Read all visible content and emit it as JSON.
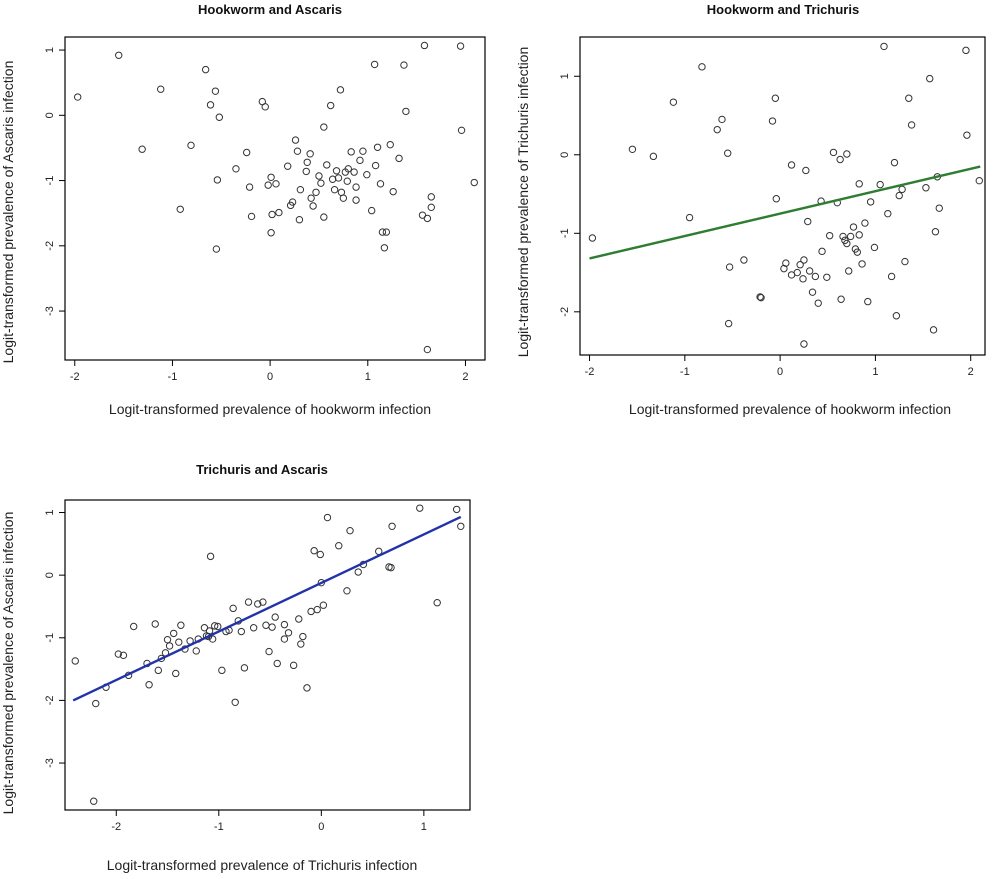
{
  "chart_data": [
    {
      "type": "scatter",
      "title": "Hookworm and Ascaris",
      "xlabel": "Logit-transformed prevalence of hookworm infection",
      "ylabel": "Logit-transformed prevalence of Ascaris infection",
      "xlim": [
        -2.1,
        2.2
      ],
      "ylim": [
        -3.75,
        1.2
      ],
      "xticks": [
        -2,
        -1,
        0,
        1,
        2
      ],
      "yticks": [
        -3,
        -2,
        -1,
        0,
        1
      ],
      "trend_line": null,
      "points": [
        [
          -1.97,
          0.28
        ],
        [
          -1.55,
          0.92
        ],
        [
          -1.12,
          0.4
        ],
        [
          -1.31,
          -0.52
        ],
        [
          -0.81,
          -0.46
        ],
        [
          -0.92,
          -1.44
        ],
        [
          -0.66,
          0.7
        ],
        [
          -0.61,
          0.16
        ],
        [
          -0.56,
          0.37
        ],
        [
          -0.54,
          -0.99
        ],
        [
          -0.55,
          -2.05
        ],
        [
          -0.35,
          -0.82
        ],
        [
          -0.24,
          -0.57
        ],
        [
          -0.21,
          -1.1
        ],
        [
          -0.19,
          -1.55
        ],
        [
          -0.08,
          0.21
        ],
        [
          -0.05,
          0.13
        ],
        [
          -0.02,
          -1.07
        ],
        [
          0.01,
          -0.95
        ],
        [
          0.02,
          -1.52
        ],
        [
          0.01,
          -1.8
        ],
        [
          0.06,
          -1.05
        ],
        [
          0.09,
          -1.49
        ],
        [
          0.18,
          -0.78
        ],
        [
          0.21,
          -1.38
        ],
        [
          0.23,
          -1.33
        ],
        [
          0.26,
          -0.38
        ],
        [
          0.28,
          -0.55
        ],
        [
          0.3,
          -1.6
        ],
        [
          0.31,
          -1.14
        ],
        [
          0.37,
          -0.86
        ],
        [
          0.38,
          -0.72
        ],
        [
          0.41,
          -0.59
        ],
        [
          0.42,
          -1.27
        ],
        [
          0.44,
          -1.39
        ],
        [
          0.47,
          -1.18
        ],
        [
          0.5,
          -0.93
        ],
        [
          0.52,
          -1.04
        ],
        [
          0.55,
          -0.18
        ],
        [
          0.55,
          -1.56
        ],
        [
          0.58,
          -0.76
        ],
        [
          0.62,
          0.15
        ],
        [
          0.64,
          -0.98
        ],
        [
          0.66,
          -1.14
        ],
        [
          0.68,
          -0.85
        ],
        [
          0.7,
          -0.96
        ],
        [
          0.73,
          -1.18
        ],
        [
          0.75,
          -1.27
        ],
        [
          0.77,
          -0.87
        ],
        [
          0.79,
          -1.01
        ],
        [
          0.8,
          -0.82
        ],
        [
          0.83,
          -0.56
        ],
        [
          0.86,
          -0.87
        ],
        [
          0.88,
          -1.1
        ],
        [
          0.88,
          -1.3
        ],
        [
          0.92,
          -0.69
        ],
        [
          0.95,
          -0.55
        ],
        [
          0.99,
          -0.91
        ],
        [
          1.04,
          -1.46
        ],
        [
          1.07,
          0.78
        ],
        [
          1.08,
          -0.77
        ],
        [
          1.1,
          -0.49
        ],
        [
          1.13,
          -1.05
        ],
        [
          1.15,
          -1.79
        ],
        [
          1.17,
          -2.03
        ],
        [
          1.19,
          -1.79
        ],
        [
          1.23,
          -0.45
        ],
        [
          1.26,
          -1.17
        ],
        [
          1.32,
          -0.66
        ],
        [
          1.37,
          0.77
        ],
        [
          1.39,
          0.06
        ],
        [
          1.56,
          -1.53
        ],
        [
          1.61,
          -1.58
        ],
        [
          1.58,
          1.07
        ],
        [
          1.65,
          -1.41
        ],
        [
          1.65,
          -1.25
        ],
        [
          1.95,
          1.06
        ],
        [
          1.96,
          -0.23
        ],
        [
          2.09,
          -1.03
        ],
        [
          1.61,
          -3.59
        ],
        [
          0.72,
          0.39
        ],
        [
          -0.52,
          -0.03
        ]
      ]
    },
    {
      "type": "scatter",
      "title": "Hookworm and Trichuris",
      "xlabel": "Logit-transformed prevalence of hookworm infection",
      "ylabel": "Logit-transformed prevalence of Trichuris infection",
      "xlim": [
        -2.1,
        2.15
      ],
      "ylim": [
        -2.55,
        1.5
      ],
      "xticks": [
        -2,
        -1,
        0,
        1,
        2
      ],
      "yticks": [
        -2,
        -1,
        0,
        1
      ],
      "trend_line": {
        "color": "#2e7d32",
        "x": [
          -2.0,
          2.1
        ],
        "y": [
          -1.32,
          -0.15
        ]
      },
      "points": [
        [
          -1.97,
          -1.06
        ],
        [
          -1.55,
          0.07
        ],
        [
          -1.33,
          -0.02
        ],
        [
          -1.12,
          0.67
        ],
        [
          -0.95,
          -0.8
        ],
        [
          -0.82,
          1.12
        ],
        [
          -0.66,
          0.32
        ],
        [
          -0.61,
          0.45
        ],
        [
          -0.55,
          0.02
        ],
        [
          -0.53,
          -1.43
        ],
        [
          -0.54,
          -2.15
        ],
        [
          -0.38,
          -1.34
        ],
        [
          -0.2,
          -1.82
        ],
        [
          -0.21,
          -1.81
        ],
        [
          -0.08,
          0.43
        ],
        [
          -0.05,
          0.72
        ],
        [
          -0.04,
          -0.56
        ],
        [
          0.04,
          -1.45
        ],
        [
          0.06,
          -1.38
        ],
        [
          0.12,
          -1.53
        ],
        [
          0.12,
          -0.13
        ],
        [
          0.18,
          -1.5
        ],
        [
          0.21,
          -1.4
        ],
        [
          0.24,
          -1.58
        ],
        [
          0.25,
          -1.34
        ],
        [
          0.27,
          -0.2
        ],
        [
          0.29,
          -0.85
        ],
        [
          0.31,
          -1.48
        ],
        [
          0.34,
          -1.75
        ],
        [
          0.37,
          -1.55
        ],
        [
          0.4,
          -1.89
        ],
        [
          0.43,
          -0.59
        ],
        [
          0.44,
          -1.23
        ],
        [
          0.49,
          -1.56
        ],
        [
          0.52,
          -1.03
        ],
        [
          0.56,
          0.03
        ],
        [
          0.6,
          -0.61
        ],
        [
          0.64,
          -1.84
        ],
        [
          0.66,
          -1.04
        ],
        [
          0.68,
          -1.09
        ],
        [
          0.7,
          -1.13
        ],
        [
          0.72,
          -1.48
        ],
        [
          0.74,
          -1.04
        ],
        [
          0.77,
          -0.92
        ],
        [
          0.79,
          -1.2
        ],
        [
          0.81,
          -1.24
        ],
        [
          0.83,
          -1.02
        ],
        [
          0.86,
          -1.39
        ],
        [
          0.89,
          -0.87
        ],
        [
          0.92,
          -1.87
        ],
        [
          0.95,
          -0.6
        ],
        [
          0.99,
          -1.18
        ],
        [
          1.05,
          -0.38
        ],
        [
          1.09,
          1.38
        ],
        [
          1.13,
          -0.75
        ],
        [
          1.17,
          -1.55
        ],
        [
          1.2,
          -0.1
        ],
        [
          1.22,
          -2.05
        ],
        [
          1.25,
          -0.52
        ],
        [
          1.28,
          -0.44
        ],
        [
          1.31,
          -1.36
        ],
        [
          1.35,
          0.72
        ],
        [
          1.38,
          0.38
        ],
        [
          1.53,
          -0.42
        ],
        [
          1.57,
          0.97
        ],
        [
          1.61,
          -2.23
        ],
        [
          1.63,
          -0.98
        ],
        [
          1.65,
          -0.28
        ],
        [
          1.67,
          -0.68
        ],
        [
          1.95,
          1.33
        ],
        [
          1.96,
          0.25
        ],
        [
          2.09,
          -0.33
        ],
        [
          0.25,
          -2.41
        ],
        [
          0.83,
          -0.37
        ],
        [
          0.7,
          0.01
        ],
        [
          0.63,
          -0.06
        ]
      ]
    },
    {
      "type": "scatter",
      "title": "Trichuris and Ascaris",
      "xlabel": "Logit-transformed prevalence of Trichuris infection",
      "ylabel": "Logit-transformed prevalence of Ascaris infection",
      "xlim": [
        -2.5,
        1.45
      ],
      "ylim": [
        -3.75,
        1.2
      ],
      "xticks": [
        -2,
        -1,
        0,
        1
      ],
      "yticks": [
        -3,
        -2,
        -1,
        0,
        1
      ],
      "trend_line": {
        "color": "#2233aa",
        "x": [
          -2.42,
          1.36
        ],
        "y": [
          -2.0,
          0.93
        ]
      },
      "points": [
        [
          -2.4,
          -1.37
        ],
        [
          -2.2,
          -2.05
        ],
        [
          -2.1,
          -1.79
        ],
        [
          -1.98,
          -1.26
        ],
        [
          -1.93,
          -1.28
        ],
        [
          -1.88,
          -1.6
        ],
        [
          -1.83,
          -0.82
        ],
        [
          -1.7,
          -1.41
        ],
        [
          -1.62,
          -0.78
        ],
        [
          -1.59,
          -1.52
        ],
        [
          -1.56,
          -1.33
        ],
        [
          -1.52,
          -1.24
        ],
        [
          -1.5,
          -1.03
        ],
        [
          -1.48,
          -1.13
        ],
        [
          -1.44,
          -0.93
        ],
        [
          -1.42,
          -1.57
        ],
        [
          -1.39,
          -1.07
        ],
        [
          -1.37,
          -0.8
        ],
        [
          -1.33,
          -1.18
        ],
        [
          -1.28,
          -1.05
        ],
        [
          -1.22,
          -1.21
        ],
        [
          -1.2,
          -1.02
        ],
        [
          -1.14,
          -0.84
        ],
        [
          -1.12,
          -0.97
        ],
        [
          -1.09,
          -0.89
        ],
        [
          -1.06,
          -1.02
        ],
        [
          -1.04,
          -0.81
        ],
        [
          -1.01,
          -0.82
        ],
        [
          -0.97,
          -1.52
        ],
        [
          -0.93,
          -0.9
        ],
        [
          -0.9,
          -0.88
        ],
        [
          -0.86,
          -0.53
        ],
        [
          -0.81,
          -0.73
        ],
        [
          -0.78,
          -0.9
        ],
        [
          -0.75,
          -1.48
        ],
        [
          -0.71,
          -0.43
        ],
        [
          -0.66,
          -0.84
        ],
        [
          -0.62,
          -0.46
        ],
        [
          -0.57,
          -0.43
        ],
        [
          -0.54,
          -0.8
        ],
        [
          -0.51,
          -1.22
        ],
        [
          -0.48,
          -0.83
        ],
        [
          -0.45,
          -0.67
        ],
        [
          -0.43,
          -1.41
        ],
        [
          -0.36,
          -0.79
        ],
        [
          -0.32,
          -0.92
        ],
        [
          -0.27,
          -1.44
        ],
        [
          -0.22,
          -0.7
        ],
        [
          -0.2,
          -1.1
        ],
        [
          -0.18,
          -0.98
        ],
        [
          -0.14,
          -1.8
        ],
        [
          -0.1,
          -0.58
        ],
        [
          -0.07,
          0.39
        ],
        [
          -0.04,
          -0.55
        ],
        [
          -0.01,
          0.33
        ],
        [
          0.02,
          -0.48
        ],
        [
          0.06,
          0.92
        ],
        [
          0.17,
          0.47
        ],
        [
          0.25,
          -0.25
        ],
        [
          0.28,
          0.71
        ],
        [
          0.36,
          0.05
        ],
        [
          0.41,
          0.17
        ],
        [
          0.56,
          0.38
        ],
        [
          0.68,
          0.12
        ],
        [
          0.69,
          0.78
        ],
        [
          0.96,
          1.07
        ],
        [
          1.13,
          -0.44
        ],
        [
          1.32,
          1.05
        ],
        [
          1.36,
          0.78
        ],
        [
          -2.22,
          -3.61
        ],
        [
          -1.08,
          0.3
        ],
        [
          -0.84,
          -2.03
        ],
        [
          -0.36,
          -1.02
        ],
        [
          0.0,
          -0.12
        ],
        [
          -1.1,
          -0.98
        ],
        [
          0.66,
          0.13
        ],
        [
          -1.68,
          -1.75
        ]
      ]
    }
  ]
}
